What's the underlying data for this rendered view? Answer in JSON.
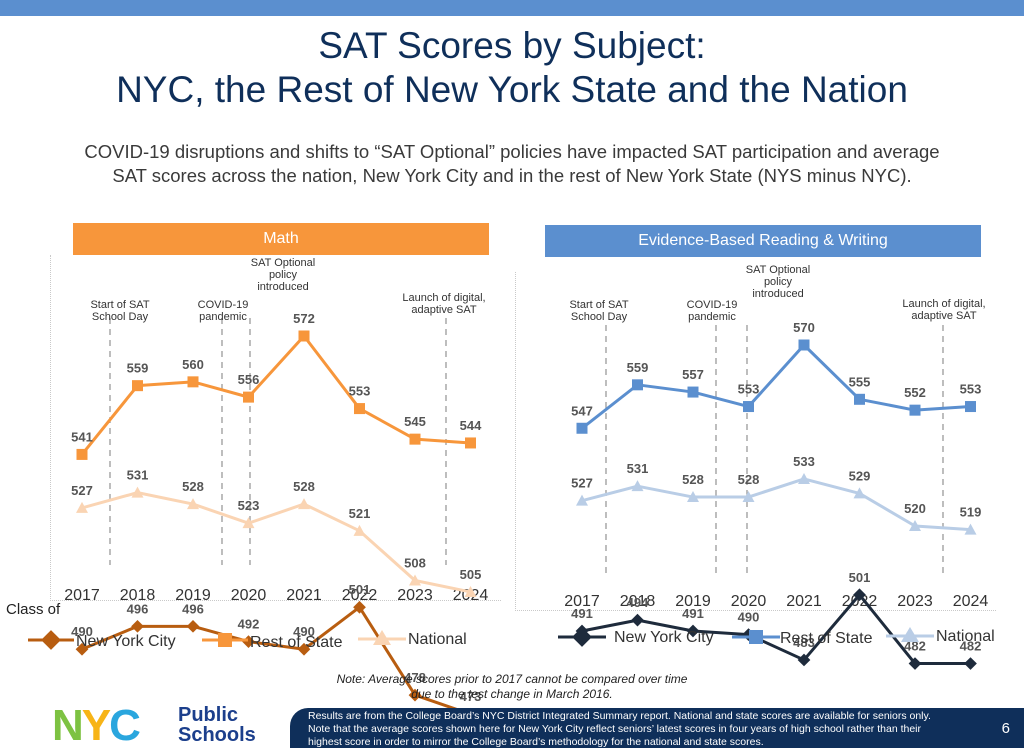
{
  "title_line1": "SAT Scores by Subject:",
  "title_line2": "NYC, the Rest of New York State and the Nation",
  "subtitle_line1": "COVID-19 disruptions and shifts to “SAT Optional” policies have impacted SAT participation and average",
  "subtitle_line2": "SAT scores across the nation, New York City and in the rest of New York State (NYS minus NYC).",
  "colors": {
    "math_header": "#f7963b",
    "ebrw_header": "#5b8fcf",
    "math_nyc": "#b85d10",
    "math_ros": "#f7963b",
    "math_national": "#fad4b3",
    "ebrw_nyc": "#1e2b3c",
    "ebrw_ros": "#5b8fcf",
    "ebrw_national": "#b9cde6",
    "title": "#0f2f5a"
  },
  "chart_data": [
    {
      "type": "line",
      "title": "Math",
      "categories": [
        "2017",
        "2018",
        "2019",
        "2020",
        "2021",
        "2022",
        "2023",
        "2024"
      ],
      "xlabel": "Class of",
      "series": [
        {
          "name": "New York City",
          "values": [
            490,
            496,
            496,
            492,
            490,
            501,
            478,
            473
          ]
        },
        {
          "name": "Rest of State",
          "values": [
            541,
            559,
            560,
            556,
            572,
            553,
            545,
            544
          ]
        },
        {
          "name": "National",
          "values": [
            527,
            531,
            528,
            523,
            528,
            521,
            508,
            505
          ]
        }
      ],
      "annotations": [
        {
          "label": "Start of SAT School Day",
          "between": [
            "2017",
            "2018"
          ]
        },
        {
          "label": "COVID-19 pandemic",
          "between": [
            "2019",
            "2020"
          ]
        },
        {
          "label": "SAT Optional policy introduced",
          "between": [
            "2020",
            "2021"
          ]
        },
        {
          "label": "Launch of digital, adaptive SAT",
          "between": [
            "2023",
            "2024"
          ]
        }
      ]
    },
    {
      "type": "line",
      "title": "Evidence-Based Reading & Writing",
      "categories": [
        "2017",
        "2018",
        "2019",
        "2020",
        "2021",
        "2022",
        "2023",
        "2024"
      ],
      "xlabel": "Class of",
      "series": [
        {
          "name": "New York City",
          "values": [
            491,
            494,
            491,
            490,
            483,
            501,
            482,
            482
          ]
        },
        {
          "name": "Rest of State",
          "values": [
            547,
            559,
            557,
            553,
            570,
            555,
            552,
            553
          ]
        },
        {
          "name": "National",
          "values": [
            527,
            531,
            528,
            528,
            533,
            529,
            520,
            519
          ]
        }
      ],
      "annotations": [
        {
          "label": "Start of SAT School Day",
          "between": [
            "2017",
            "2018"
          ]
        },
        {
          "label": "COVID-19 pandemic",
          "between": [
            "2019",
            "2020"
          ]
        },
        {
          "label": "SAT Optional policy introduced",
          "between": [
            "2020",
            "2021"
          ]
        },
        {
          "label": "Launch of digital, adaptive SAT",
          "between": [
            "2023",
            "2024"
          ]
        }
      ]
    }
  ],
  "annotation_lines": {
    "school_day": [
      "Start of SAT",
      "School Day"
    ],
    "covid": [
      "COVID-19",
      "pandemic"
    ],
    "optional": [
      "SAT Optional",
      "policy",
      "introduced"
    ],
    "digital": [
      "Launch of digital,",
      "adaptive SAT"
    ]
  },
  "class_of_label": "Class of",
  "legend": {
    "nyc": "New York City",
    "ros": "Rest of State",
    "national": "National"
  },
  "note_line1": "Note: Average scores prior to 2017 cannot be compared over time",
  "note_line2": "due to the test change in March 2016.",
  "logo": {
    "nyc": "NYC",
    "public": "Public",
    "schools": "Schools"
  },
  "footer_line1": "Results are from the College Board’s NYC District Integrated Summary report. National and state scores are available for seniors only.",
  "footer_line2": "Note that the average scores shown here for New York City reflect seniors’ latest scores in four years of high school rather than their",
  "footer_line3": "highest score in order to mirror the College Board’s methodology for the national and state scores.",
  "page_number": "6"
}
